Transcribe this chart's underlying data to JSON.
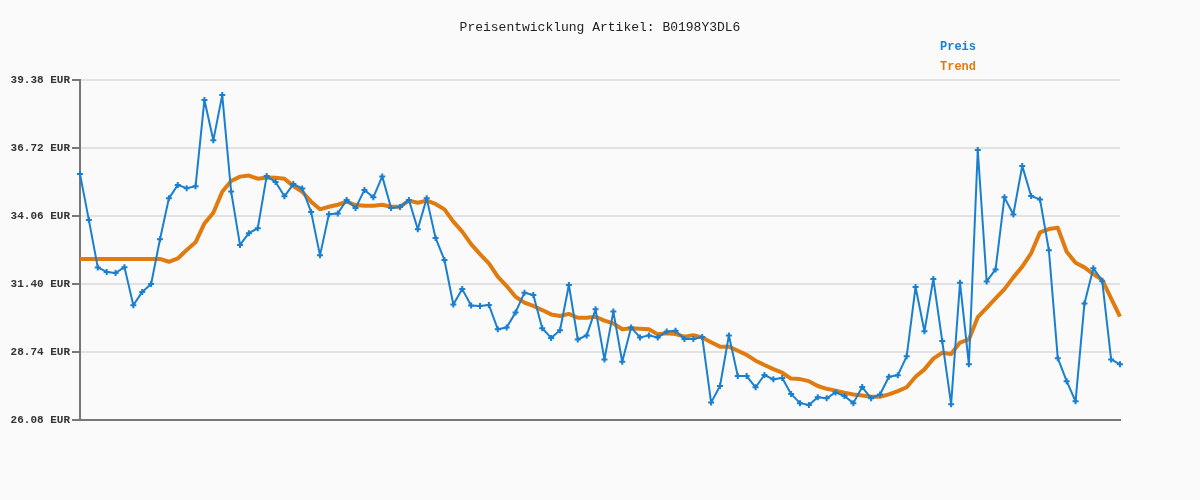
{
  "chart_data": {
    "type": "line",
    "title": "Preisentwicklung Artikel: B0198Y3DL6",
    "categories": [
      null,
      null,
      null,
      null,
      null,
      null,
      null,
      null,
      null,
      null,
      null,
      null,
      null,
      null,
      null,
      null,
      null,
      null,
      null,
      null,
      null,
      null,
      null,
      null,
      null,
      null,
      null,
      null,
      null,
      null,
      null,
      null,
      null,
      null,
      null,
      null,
      null,
      null,
      null,
      null,
      null,
      null,
      null,
      null,
      null,
      null,
      null,
      null,
      null,
      null,
      null,
      null,
      null,
      null,
      null,
      null,
      null,
      null,
      null,
      null,
      null,
      null,
      null,
      null,
      null,
      null,
      null,
      null,
      null,
      null,
      null,
      null,
      null,
      null,
      null,
      null,
      null,
      null,
      null,
      null,
      null,
      null,
      null,
      null,
      null,
      null,
      null,
      null,
      null,
      null,
      null,
      null,
      null,
      null,
      null,
      null,
      null,
      null,
      null,
      null,
      null,
      null,
      null,
      null,
      null,
      null,
      null,
      null,
      null,
      null,
      null,
      null,
      null,
      null,
      null,
      null,
      null,
      null
    ],
    "series": [
      {
        "name": "Preis",
        "color": "#1a7fcf",
        "marker": "cross",
        "values": [
          35.7,
          33.9,
          32.05,
          31.87,
          31.83,
          32.06,
          30.57,
          31.09,
          31.4,
          33.15,
          34.75,
          35.27,
          35.15,
          35.22,
          38.6,
          37.02,
          38.79,
          35.02,
          32.93,
          33.39,
          33.58,
          35.62,
          35.39,
          34.83,
          35.31,
          35.14,
          34.22,
          32.52,
          34.13,
          34.16,
          34.69,
          34.37,
          35.08,
          34.79,
          35.61,
          34.37,
          34.41,
          34.69,
          33.54,
          34.75,
          33.2,
          32.34,
          30.6,
          31.2,
          30.56,
          30.54,
          30.58,
          29.63,
          29.7,
          30.29,
          31.06,
          30.97,
          29.67,
          29.29,
          29.59,
          31.36,
          29.23,
          29.39,
          30.41,
          28.45,
          30.32,
          28.36,
          29.7,
          29.31,
          29.39,
          29.31,
          29.54,
          29.57,
          29.25,
          29.25,
          29.33,
          26.76,
          27.41,
          29.39,
          27.8,
          27.8,
          27.36,
          27.84,
          27.67,
          27.72,
          27.1,
          26.74,
          26.67,
          26.97,
          26.93,
          27.16,
          27.02,
          26.74,
          27.37,
          26.93,
          27.08,
          27.77,
          27.83,
          28.57,
          31.28,
          29.55,
          31.6,
          29.17,
          26.7,
          31.45,
          28.26,
          36.64,
          31.5,
          31.97,
          34.79,
          34.12,
          36.02,
          34.84,
          34.71,
          32.72,
          28.5,
          27.6,
          26.81,
          30.64,
          32.02,
          31.51,
          28.45,
          28.26
        ]
      },
      {
        "name": "Trend",
        "color": "#e07b10",
        "marker": "none",
        "values": [
          32.38,
          32.38,
          32.38,
          32.38,
          32.38,
          32.38,
          32.38,
          32.38,
          32.38,
          32.38,
          32.27,
          32.4,
          32.73,
          33.03,
          33.77,
          34.19,
          35.01,
          35.43,
          35.6,
          35.64,
          35.52,
          35.57,
          35.56,
          35.52,
          35.23,
          35.01,
          34.62,
          34.32,
          34.42,
          34.5,
          34.62,
          34.49,
          34.46,
          34.46,
          34.5,
          34.42,
          34.42,
          34.66,
          34.58,
          34.66,
          34.53,
          34.32,
          33.84,
          33.45,
          32.96,
          32.57,
          32.21,
          31.69,
          31.32,
          30.9,
          30.67,
          30.54,
          30.38,
          30.21,
          30.15,
          30.23,
          30.08,
          30.08,
          30.12,
          29.97,
          29.86,
          29.63,
          29.67,
          29.65,
          29.63,
          29.43,
          29.47,
          29.44,
          29.34,
          29.4,
          29.31,
          29.12,
          28.95,
          28.95,
          28.79,
          28.63,
          28.4,
          28.23,
          28.07,
          27.93,
          27.7,
          27.68,
          27.6,
          27.41,
          27.3,
          27.23,
          27.15,
          27.08,
          27.04,
          26.99,
          26.99,
          27.08,
          27.21,
          27.36,
          27.77,
          28.06,
          28.48,
          28.71,
          28.66,
          29.11,
          29.23,
          30.1,
          30.47,
          30.84,
          31.2,
          31.66,
          32.08,
          32.6,
          33.42,
          33.55,
          33.6,
          32.66,
          32.23,
          32.05,
          31.79,
          31.56,
          30.84,
          30.12
        ]
      }
    ],
    "ylim": [
      26.08,
      39.38
    ],
    "yticks": [
      {
        "value": 26.08,
        "label": "26.08 EUR"
      },
      {
        "value": 28.74,
        "label": "28.74 EUR"
      },
      {
        "value": 31.4,
        "label": "31.40 EUR"
      },
      {
        "value": 34.06,
        "label": "34.06 EUR"
      },
      {
        "value": 36.72,
        "label": "36.72 EUR"
      },
      {
        "value": 39.38,
        "label": "39.38 EUR"
      }
    ],
    "grid": "y",
    "legend": "top right",
    "tick_labels": "y"
  }
}
